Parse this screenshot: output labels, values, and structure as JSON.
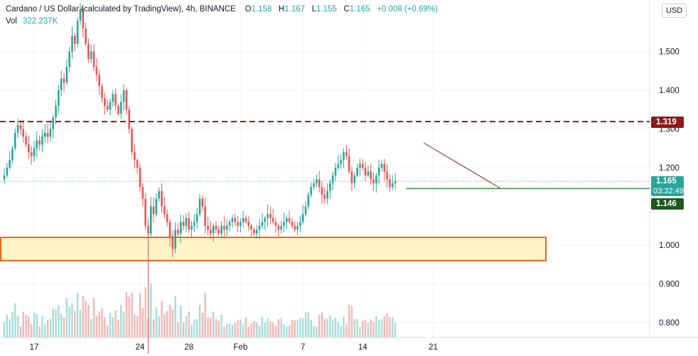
{
  "legend": {
    "title": "Cardano / US Dollar (calculated by TradingView), 4h, BINANCE",
    "o_label": "O",
    "o": "1.158",
    "h_label": "H",
    "h": "1.167",
    "l_label": "L",
    "l": "1.155",
    "c_label": "C",
    "c": "1.165",
    "change": "+0.008 (+0.69%)",
    "vol_label": "Vol",
    "vol": "322.237K"
  },
  "currency_button": "USD",
  "price_tags": {
    "resistance": "1.319",
    "current": "1.165",
    "countdown": "03:32:49",
    "support": "1.146"
  },
  "colors": {
    "up": "#26a69a",
    "down": "#ef5350",
    "resistance": "#8b1a1a",
    "support": "#3e8e41",
    "zone_fill": "#fff5c8",
    "zone_border": "#e8631c",
    "trendline": "#8b1a1a",
    "current_tag": "#26a69a"
  },
  "chart_data": {
    "type": "candlestick",
    "symbol": "ADAUSD",
    "interval": "4h",
    "y_ticks": [
      "1.500",
      "1.400",
      "1.300",
      "1.200",
      "1.000",
      "0.900",
      "0.800"
    ],
    "x_ticks": [
      "17",
      "24",
      "28",
      "Feb",
      "7",
      "14",
      "21"
    ],
    "ylim": [
      0.76,
      1.63
    ],
    "grid": true,
    "levels": {
      "resistance": 1.319,
      "support": 1.146,
      "last_price": 1.165
    },
    "demand_zone": [
      0.96,
      1.02
    ],
    "close_series": [
      1.18,
      1.2,
      1.22,
      1.25,
      1.29,
      1.31,
      1.3,
      1.28,
      1.26,
      1.24,
      1.23,
      1.25,
      1.27,
      1.26,
      1.28,
      1.29,
      1.28,
      1.3,
      1.33,
      1.36,
      1.4,
      1.43,
      1.42,
      1.46,
      1.5,
      1.54,
      1.52,
      1.58,
      1.61,
      1.56,
      1.52,
      1.48,
      1.5,
      1.46,
      1.44,
      1.41,
      1.38,
      1.36,
      1.35,
      1.37,
      1.39,
      1.36,
      1.34,
      1.37,
      1.4,
      1.35,
      1.3,
      1.24,
      1.22,
      1.2,
      1.15,
      1.12,
      1.05,
      1.03,
      1.1,
      1.08,
      1.12,
      1.14,
      1.1,
      1.08,
      1.06,
      1.02,
      0.99,
      1.04,
      1.03,
      1.06,
      1.05,
      1.07,
      1.04,
      1.05,
      1.06,
      1.08,
      1.12,
      1.1,
      1.05,
      1.04,
      1.03,
      1.05,
      1.04,
      1.03,
      1.05,
      1.04,
      1.05,
      1.06,
      1.07,
      1.06,
      1.05,
      1.06,
      1.07,
      1.06,
      1.05,
      1.04,
      1.03,
      1.04,
      1.05,
      1.06,
      1.07,
      1.08,
      1.07,
      1.06,
      1.05,
      1.04,
      1.05,
      1.06,
      1.07,
      1.06,
      1.05,
      1.04,
      1.05,
      1.06,
      1.08,
      1.1,
      1.13,
      1.15,
      1.16,
      1.17,
      1.15,
      1.13,
      1.12,
      1.14,
      1.16,
      1.18,
      1.2,
      1.21,
      1.22,
      1.24,
      1.23,
      1.19,
      1.16,
      1.18,
      1.2,
      1.21,
      1.2,
      1.18,
      1.19,
      1.17,
      1.16,
      1.18,
      1.2,
      1.21,
      1.19,
      1.17,
      1.15,
      1.16,
      1.165
    ],
    "x_tick_index": [
      11,
      50,
      68,
      87,
      110,
      132,
      158
    ]
  }
}
